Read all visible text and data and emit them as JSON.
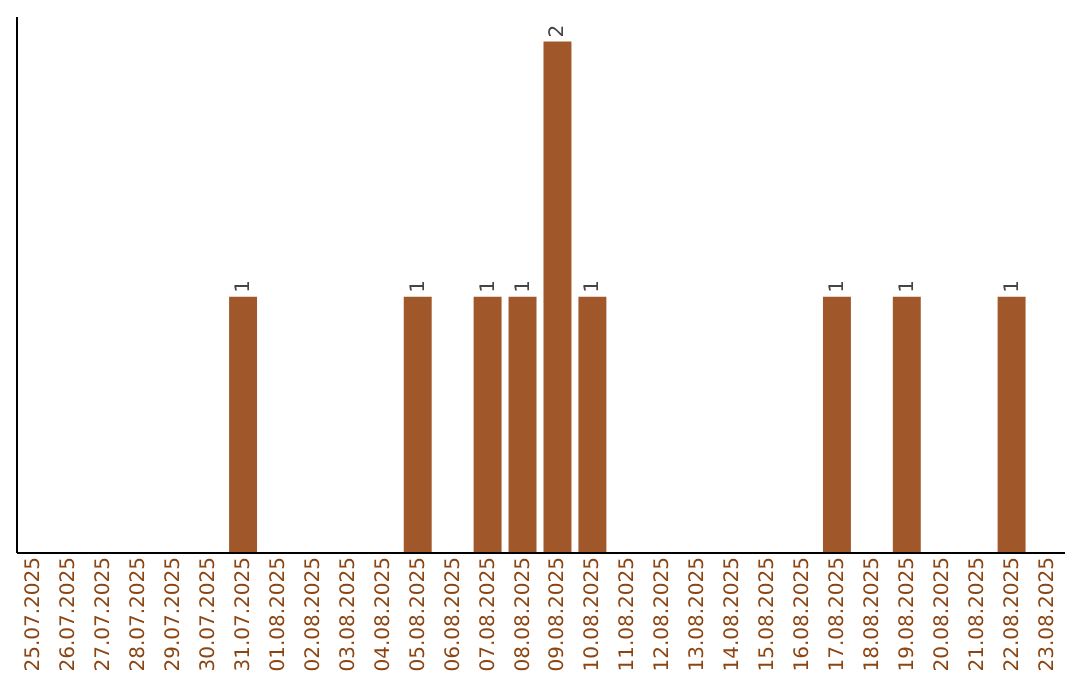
{
  "chart_data": {
    "type": "bar",
    "categories": [
      "25.07.2025",
      "26.07.2025",
      "27.07.2025",
      "28.07.2025",
      "29.07.2025",
      "30.07.2025",
      "31.07.2025",
      "01.08.2025",
      "02.08.2025",
      "03.08.2025",
      "04.08.2025",
      "05.08.2025",
      "06.08.2025",
      "07.08.2025",
      "08.08.2025",
      "09.08.2025",
      "10.08.2025",
      "11.08.2025",
      "12.08.2025",
      "13.08.2025",
      "14.08.2025",
      "15.08.2025",
      "16.08.2025",
      "17.08.2025",
      "18.08.2025",
      "19.08.2025",
      "20.08.2025",
      "21.08.2025",
      "22.08.2025",
      "23.08.2025"
    ],
    "values": [
      0,
      0,
      0,
      0,
      0,
      0,
      1,
      0,
      0,
      0,
      0,
      1,
      0,
      1,
      1,
      2,
      1,
      0,
      0,
      0,
      0,
      0,
      0,
      1,
      0,
      1,
      0,
      0,
      1,
      0
    ],
    "value_labels": [
      null,
      null,
      null,
      null,
      null,
      null,
      "1",
      null,
      null,
      null,
      null,
      "1",
      null,
      "1",
      "1",
      "2",
      "1",
      null,
      null,
      null,
      null,
      null,
      null,
      "1",
      null,
      "1",
      null,
      null,
      "1",
      null
    ],
    "color": "#a0582a",
    "ylim": [
      0,
      2.1
    ],
    "tick_labels": "x",
    "grid": false
  }
}
